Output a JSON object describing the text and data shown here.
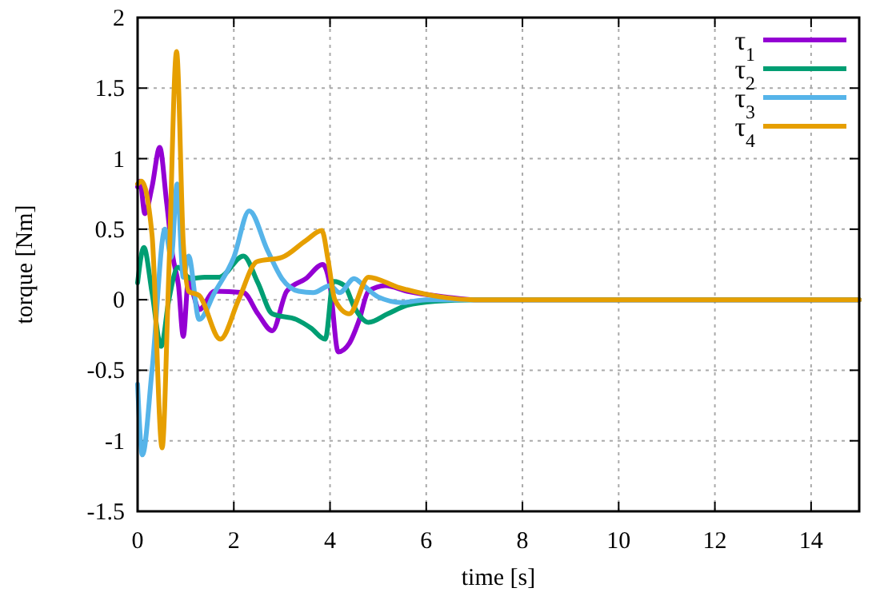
{
  "chart_data": {
    "type": "line",
    "xlabel": "time [s]",
    "ylabel": "torque [Nm]",
    "xlim": [
      0,
      15
    ],
    "ylim": [
      -1.5,
      2
    ],
    "xticks": [
      0,
      2,
      4,
      6,
      8,
      10,
      12,
      14
    ],
    "yticks": [
      -1.5,
      -1,
      -0.5,
      0,
      0.5,
      1,
      1.5,
      2
    ],
    "grid": true,
    "legend": "top right",
    "line_style": "solid",
    "series": [
      {
        "name": "τ$_{1}$",
        "color": "#9400d3",
        "x": [
          0,
          0.05,
          0.15,
          0.3,
          0.46,
          0.6,
          0.73,
          0.85,
          0.95,
          1.06,
          1.15,
          1.28,
          1.6,
          2.2,
          2.5,
          2.8,
          3.1,
          3.5,
          3.85,
          4.0,
          4.17,
          4.4,
          4.6,
          4.8,
          5.15,
          5.6,
          6.4,
          7,
          15
        ],
        "values": [
          0.8,
          0.84,
          0.61,
          0.8,
          1.08,
          0.7,
          0.31,
          0.1,
          -0.26,
          0.16,
          0.05,
          -0.07,
          0.06,
          0.05,
          -0.1,
          -0.22,
          0.06,
          0.15,
          0.25,
          0.1,
          -0.37,
          -0.31,
          -0.15,
          0.06,
          0.1,
          0.06,
          0.02,
          0,
          0
        ]
      },
      {
        "name": "τ$_{2}$",
        "color": "#009e73",
        "x": [
          0,
          0.13,
          0.3,
          0.49,
          0.65,
          0.84,
          1.1,
          1.4,
          1.7,
          2.2,
          2.5,
          2.8,
          3.3,
          3.6,
          3.9,
          4.07,
          4.3,
          4.5,
          4.8,
          5.2,
          5.6,
          6.2,
          7,
          15
        ],
        "values": [
          0.12,
          0.37,
          0.05,
          -0.33,
          0.0,
          0.23,
          0.15,
          0.16,
          0.16,
          0.31,
          0.12,
          -0.1,
          -0.14,
          -0.2,
          -0.28,
          0.13,
          0.1,
          -0.05,
          -0.16,
          -0.1,
          -0.04,
          -0.01,
          0,
          0
        ]
      },
      {
        "name": "τ$_{3}$",
        "color": "#56b4e9",
        "x": [
          0,
          0.1,
          0.3,
          0.57,
          0.7,
          0.82,
          0.95,
          1.06,
          1.28,
          1.6,
          2.0,
          2.32,
          2.7,
          3.0,
          3.35,
          3.65,
          4.0,
          4.2,
          4.5,
          4.7,
          5.0,
          5.5,
          6,
          7,
          15
        ],
        "values": [
          -0.6,
          -1.1,
          -0.5,
          0.5,
          0.3,
          0.82,
          0.16,
          0.31,
          -0.14,
          0.05,
          0.3,
          0.63,
          0.35,
          0.15,
          0.06,
          0.05,
          0.1,
          0.05,
          0.15,
          0.1,
          0.02,
          -0.02,
          0,
          0,
          0
        ]
      },
      {
        "name": "τ$_{4}$",
        "color": "#e69f00",
        "x": [
          0,
          0.08,
          0.3,
          0.51,
          0.65,
          0.81,
          0.95,
          1.06,
          1.28,
          1.72,
          2.1,
          2.48,
          3.0,
          3.5,
          3.83,
          3.96,
          4.1,
          4.4,
          4.8,
          5.4,
          6.3,
          7,
          15
        ],
        "values": [
          0.82,
          0.84,
          0.46,
          -1.05,
          0.2,
          1.76,
          0.4,
          0.06,
          0.03,
          -0.28,
          0.0,
          0.27,
          0.3,
          0.42,
          0.49,
          0.28,
          0.0,
          -0.1,
          0.16,
          0.09,
          0.02,
          0,
          0
        ]
      }
    ]
  }
}
